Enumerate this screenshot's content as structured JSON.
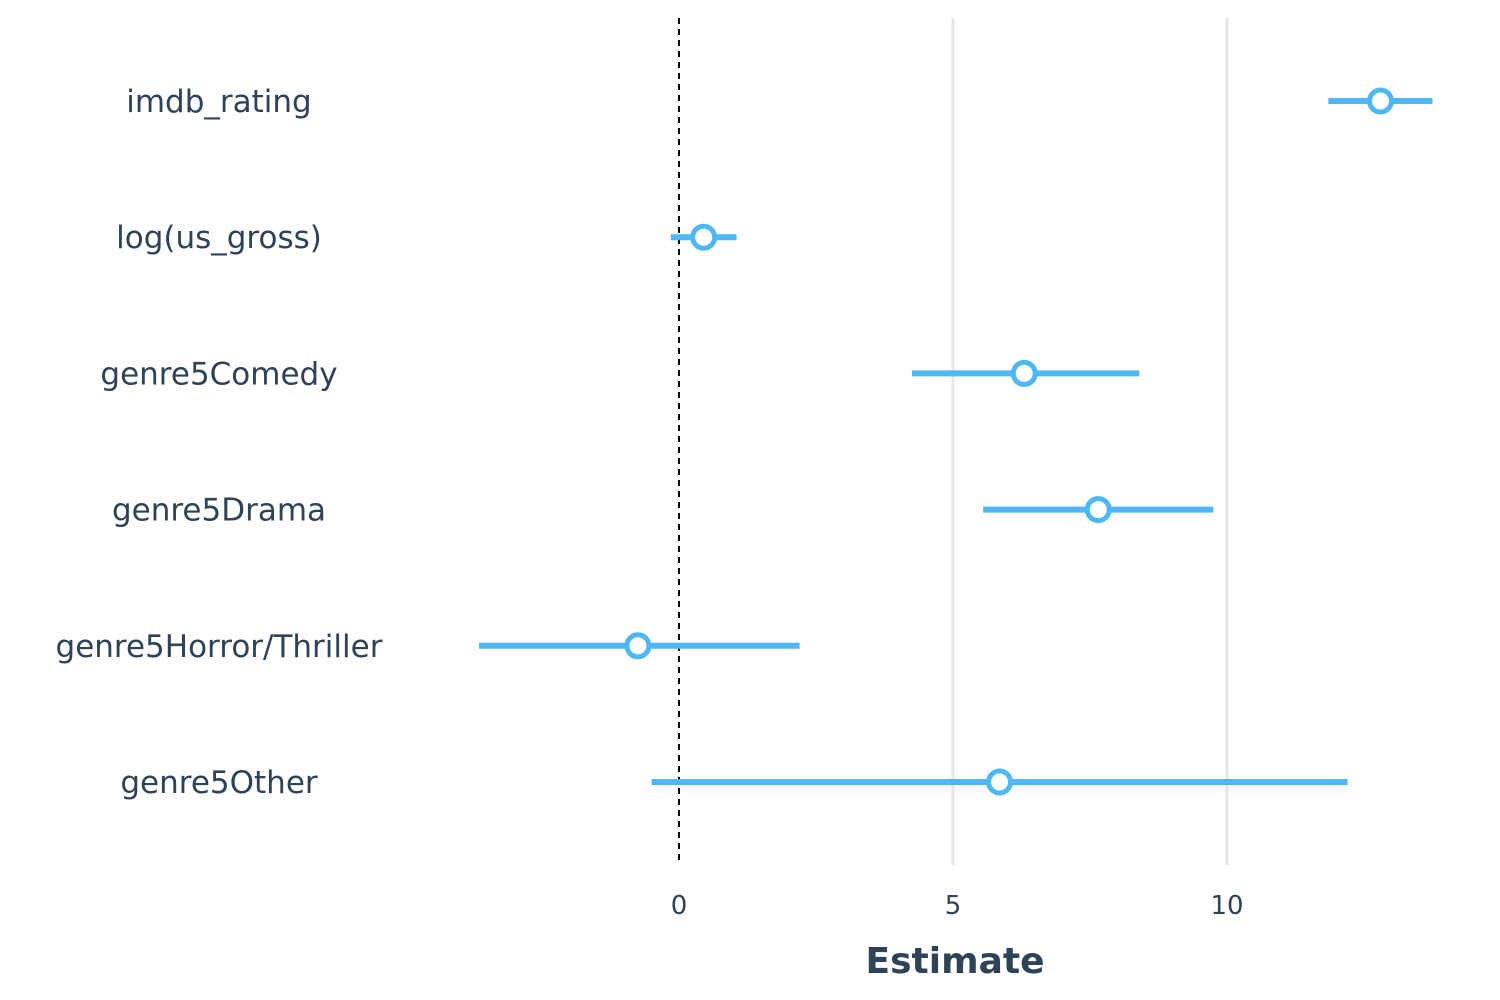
{
  "chart_data": {
    "type": "coefficient-plot",
    "xlabel": "Estimate",
    "x_ticks": [
      0,
      5,
      10
    ],
    "xlim": [
      -4.0,
      14.0
    ],
    "reference_line": 0,
    "grid": true,
    "terms": [
      {
        "label": "imdb_rating",
        "estimate": 12.8,
        "low": 11.85,
        "high": 13.75
      },
      {
        "label": "log(us_gross)",
        "estimate": 0.45,
        "low": -0.15,
        "high": 1.05
      },
      {
        "label": "genre5Comedy",
        "estimate": 6.3,
        "low": 4.25,
        "high": 8.4
      },
      {
        "label": "genre5Drama",
        "estimate": 7.65,
        "low": 5.55,
        "high": 9.75
      },
      {
        "label": "genre5Horror/Thriller",
        "estimate": -0.75,
        "low": -3.65,
        "high": 2.2
      },
      {
        "label": "genre5Other",
        "estimate": 5.85,
        "low": -0.5,
        "high": 12.2
      }
    ],
    "colors": {
      "point_line": "#4db8f5",
      "grid": "#e6e6e6",
      "reference": "#000000",
      "text": "#2f4356"
    }
  }
}
